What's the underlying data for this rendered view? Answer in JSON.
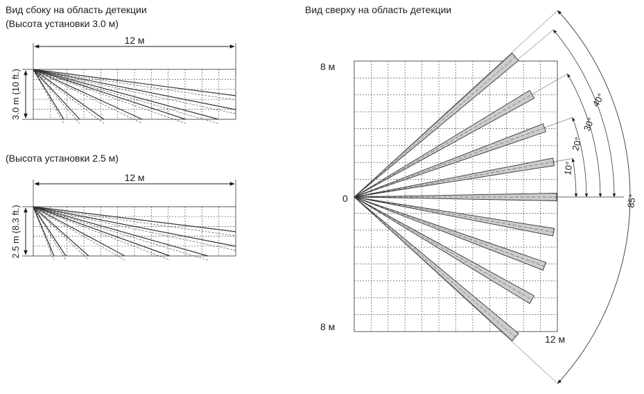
{
  "side_view": {
    "title": "Вид сбоку на область детекции",
    "panel_top": {
      "height_label": "(Высота установки 3.0 м)",
      "width_label": "12 м",
      "vertical_label": "3.0 m (10 ft.)"
    },
    "panel_bottom": {
      "height_label": "(Высота установки 2.5 м)",
      "width_label": "12 м",
      "vertical_label": "2.5 m (8.3 ft.)"
    }
  },
  "top_view": {
    "title": "Вид сверху на область детекции",
    "top_label": "8 м",
    "origin_label": "0",
    "bottom_label": "8 м",
    "right_label": "12 м",
    "angles": [
      "10°",
      "20°",
      "30°",
      "40°",
      "85°"
    ]
  },
  "colors": {
    "line": "#333333",
    "grid": "#555555",
    "beam_fill": "#cccccc"
  }
}
